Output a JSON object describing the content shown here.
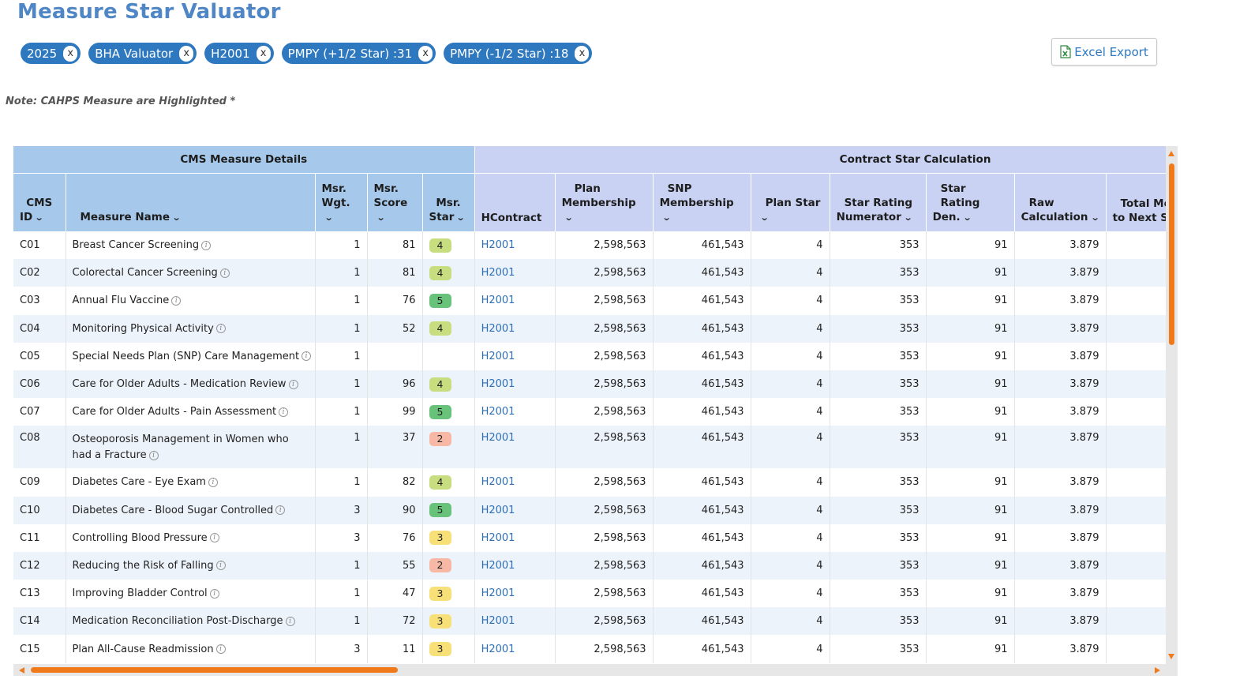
{
  "page": {
    "title": "Measure Star Valuator",
    "note": "Note: CAHPS Measure are Highlighted *"
  },
  "filters": [
    {
      "label": "2025",
      "remove": "x"
    },
    {
      "label": "BHA Valuator",
      "remove": "x"
    },
    {
      "label": "H2001",
      "remove": "x"
    },
    {
      "label": "PMPY (+1/2 Star) :31",
      "remove": "x"
    },
    {
      "label": "PMPY (-1/2 Star) :18",
      "remove": "x"
    }
  ],
  "export": {
    "label": "Excel Export",
    "icon": "excel-file-icon"
  },
  "table": {
    "groups": {
      "cms": "CMS Measure Details",
      "contract": "Contract Star Calculation"
    },
    "headers": {
      "cms_id": "CMS ID",
      "measure_name": "Measure Name",
      "msr_wgt": "Msr. Wgt.",
      "msr_score": "Msr. Score",
      "msr_star": "Msr. Star",
      "hcontract": "HContract",
      "plan_membership": "Plan Membership",
      "snp_membership": "SNP Membership",
      "plan_star": "Plan Star",
      "star_numerator": "Star Rating Numerator",
      "star_den": "Star Rating Den.",
      "raw_calc": "Raw Calculation",
      "total_next": "Total Me to Next St"
    },
    "header_lines": {
      "cms_id": [
        "CMS",
        "ID"
      ],
      "msr_wgt": [
        "Msr.",
        "Wgt."
      ],
      "msr_score": [
        "Msr.",
        "Score"
      ],
      "msr_star": [
        "Msr.",
        "Star"
      ],
      "plan_membership": [
        "Plan",
        "Membership"
      ],
      "snp_membership": [
        "SNP",
        "Membership"
      ],
      "plan_star": [
        "Plan Star",
        ""
      ],
      "star_numerator": [
        "Star Rating",
        "Numerator"
      ],
      "star_den": [
        "Star Rating",
        "Den."
      ],
      "raw_calc": [
        "Raw",
        "Calculation"
      ],
      "total_next": [
        "Total Me",
        "to Next St"
      ]
    },
    "star_colors": {
      "5": "#69c27a",
      "4": "#c7dd7f",
      "3": "#f8e079",
      "2": "#f7b9a5"
    },
    "rows": [
      {
        "id": "C01",
        "name": "Breast Cancer Screening",
        "wgt": "1",
        "score": "81",
        "star": "4",
        "contract": "H2001",
        "plan_mem": "2,598,563",
        "snp_mem": "461,543",
        "plan_star": "4",
        "num": "353",
        "den": "91",
        "raw": "3.879"
      },
      {
        "id": "C02",
        "name": "Colorectal Cancer Screening",
        "wgt": "1",
        "score": "81",
        "star": "4",
        "contract": "H2001",
        "plan_mem": "2,598,563",
        "snp_mem": "461,543",
        "plan_star": "4",
        "num": "353",
        "den": "91",
        "raw": "3.879"
      },
      {
        "id": "C03",
        "name": "Annual Flu Vaccine",
        "wgt": "1",
        "score": "76",
        "star": "5",
        "contract": "H2001",
        "plan_mem": "2,598,563",
        "snp_mem": "461,543",
        "plan_star": "4",
        "num": "353",
        "den": "91",
        "raw": "3.879"
      },
      {
        "id": "C04",
        "name": "Monitoring Physical Activity",
        "wgt": "1",
        "score": "52",
        "star": "4",
        "contract": "H2001",
        "plan_mem": "2,598,563",
        "snp_mem": "461,543",
        "plan_star": "4",
        "num": "353",
        "den": "91",
        "raw": "3.879"
      },
      {
        "id": "C05",
        "name": "Special Needs Plan (SNP) Care Management",
        "wgt": "1",
        "score": "",
        "star": "",
        "contract": "H2001",
        "plan_mem": "2,598,563",
        "snp_mem": "461,543",
        "plan_star": "4",
        "num": "353",
        "den": "91",
        "raw": "3.879"
      },
      {
        "id": "C06",
        "name": "Care for Older Adults - Medication Review",
        "wgt": "1",
        "score": "96",
        "star": "4",
        "contract": "H2001",
        "plan_mem": "2,598,563",
        "snp_mem": "461,543",
        "plan_star": "4",
        "num": "353",
        "den": "91",
        "raw": "3.879"
      },
      {
        "id": "C07",
        "name": "Care for Older Adults - Pain Assessment",
        "wgt": "1",
        "score": "99",
        "star": "5",
        "contract": "H2001",
        "plan_mem": "2,598,563",
        "snp_mem": "461,543",
        "plan_star": "4",
        "num": "353",
        "den": "91",
        "raw": "3.879"
      },
      {
        "id": "C08",
        "name": "Osteoporosis Management in Women who had a Fracture",
        "wgt": "1",
        "score": "37",
        "star": "2",
        "contract": "H2001",
        "plan_mem": "2,598,563",
        "snp_mem": "461,543",
        "plan_star": "4",
        "num": "353",
        "den": "91",
        "raw": "3.879"
      },
      {
        "id": "C09",
        "name": "Diabetes Care - Eye Exam",
        "wgt": "1",
        "score": "82",
        "star": "4",
        "contract": "H2001",
        "plan_mem": "2,598,563",
        "snp_mem": "461,543",
        "plan_star": "4",
        "num": "353",
        "den": "91",
        "raw": "3.879"
      },
      {
        "id": "C10",
        "name": "Diabetes Care - Blood Sugar Controlled",
        "wgt": "3",
        "score": "90",
        "star": "5",
        "contract": "H2001",
        "plan_mem": "2,598,563",
        "snp_mem": "461,543",
        "plan_star": "4",
        "num": "353",
        "den": "91",
        "raw": "3.879"
      },
      {
        "id": "C11",
        "name": "Controlling Blood Pressure",
        "wgt": "3",
        "score": "76",
        "star": "3",
        "contract": "H2001",
        "plan_mem": "2,598,563",
        "snp_mem": "461,543",
        "plan_star": "4",
        "num": "353",
        "den": "91",
        "raw": "3.879"
      },
      {
        "id": "C12",
        "name": "Reducing the Risk of Falling",
        "wgt": "1",
        "score": "55",
        "star": "2",
        "contract": "H2001",
        "plan_mem": "2,598,563",
        "snp_mem": "461,543",
        "plan_star": "4",
        "num": "353",
        "den": "91",
        "raw": "3.879"
      },
      {
        "id": "C13",
        "name": "Improving Bladder Control",
        "wgt": "1",
        "score": "47",
        "star": "3",
        "contract": "H2001",
        "plan_mem": "2,598,563",
        "snp_mem": "461,543",
        "plan_star": "4",
        "num": "353",
        "den": "91",
        "raw": "3.879"
      },
      {
        "id": "C14",
        "name": "Medication Reconciliation Post-Discharge",
        "wgt": "1",
        "score": "72",
        "star": "3",
        "contract": "H2001",
        "plan_mem": "2,598,563",
        "snp_mem": "461,543",
        "plan_star": "4",
        "num": "353",
        "den": "91",
        "raw": "3.879"
      },
      {
        "id": "C15",
        "name": "Plan All-Cause Readmission",
        "wgt": "3",
        "score": "11",
        "star": "3",
        "contract": "H2001",
        "plan_mem": "2,598,563",
        "snp_mem": "461,543",
        "plan_star": "4",
        "num": "353",
        "den": "91",
        "raw": "3.879"
      }
    ]
  },
  "accent_colors": {
    "title": "#4f86c6",
    "chip": "#2d78bf",
    "scrollbar": "#f07a1a"
  }
}
